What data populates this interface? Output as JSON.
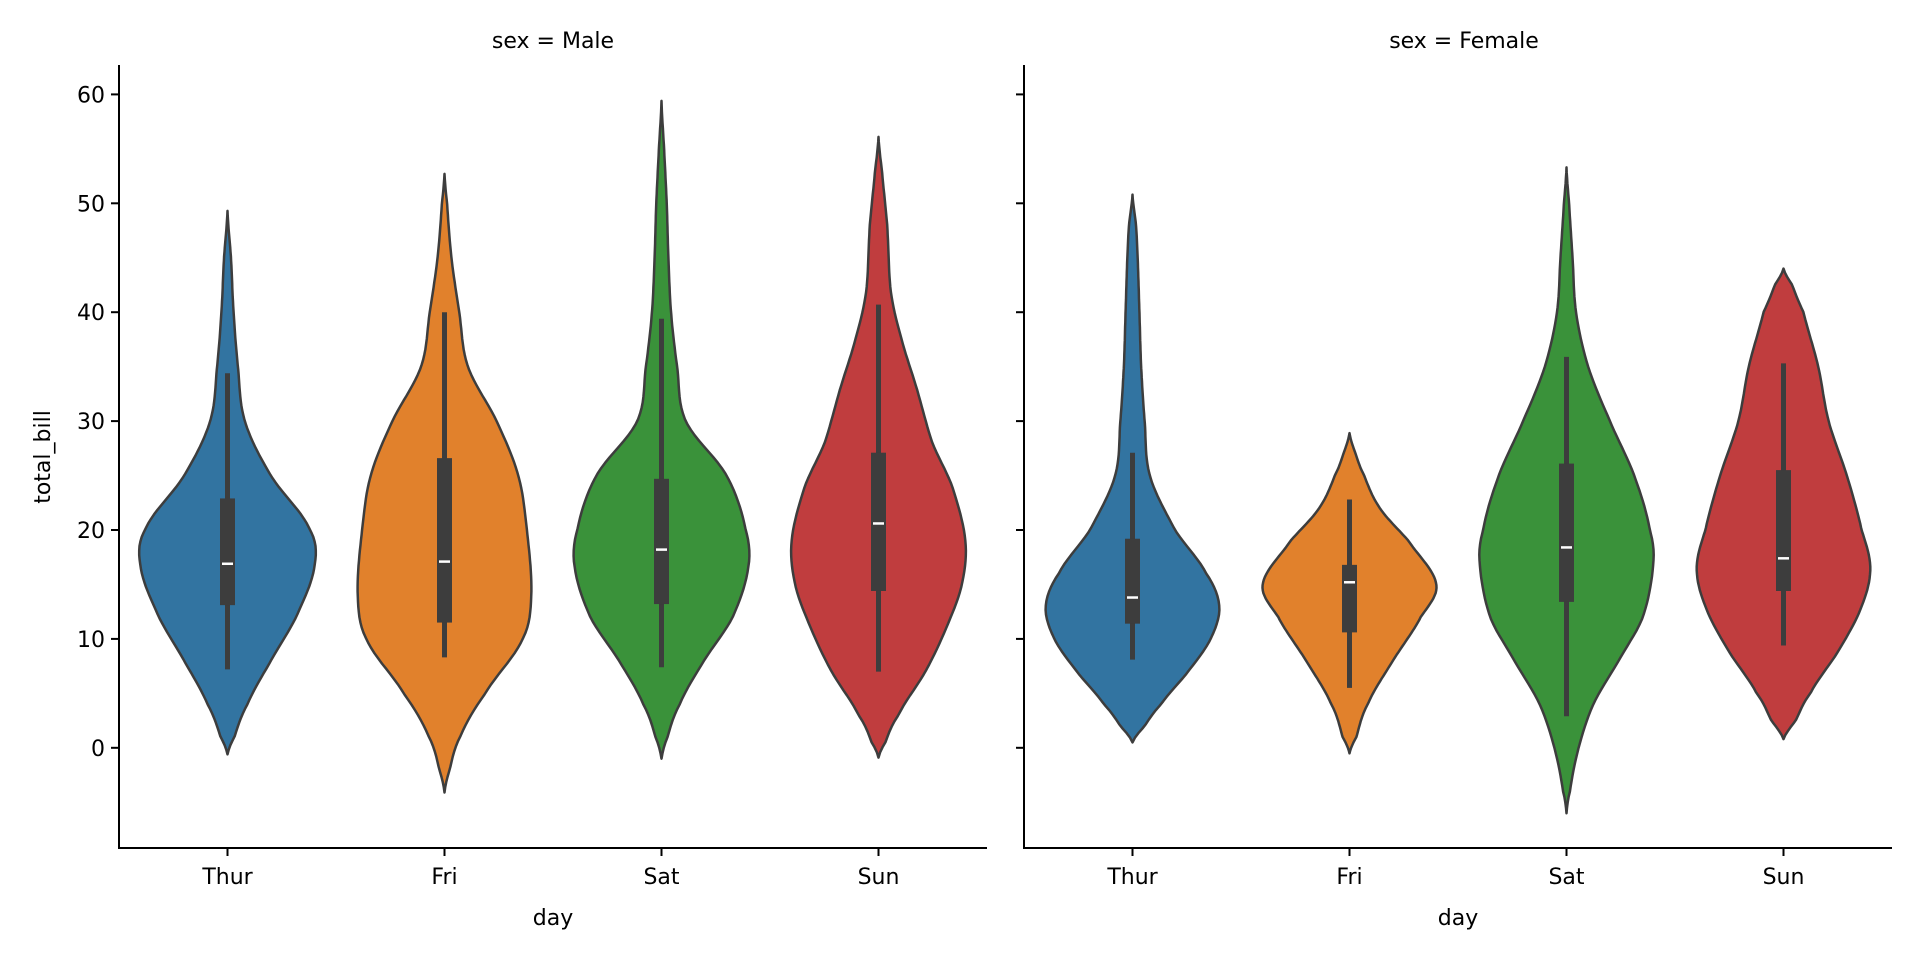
{
  "chart_data": {
    "type": "violin",
    "ylabel": "total_bill",
    "xlabel": "day",
    "ylim": [
      -9.2,
      62.7
    ],
    "yticks": [
      "0",
      "10",
      "20",
      "30",
      "40",
      "50",
      "60"
    ],
    "ytick_values": [
      0,
      10,
      20,
      30,
      40,
      50,
      60
    ],
    "categories": [
      "Thur",
      "Fri",
      "Sat",
      "Sun"
    ],
    "colors": [
      "#3274a1",
      "#e1812c",
      "#3a923a",
      "#c03d3e"
    ],
    "outline_color": "#3d3d3d",
    "grid": false,
    "panels": [
      {
        "title": "sex = Male",
        "violins": [
          {
            "category": "Thur",
            "min": -0.6,
            "max": 49.3,
            "whisker_low": 7.2,
            "q1": 13.1,
            "median": 16.9,
            "q3": 22.9,
            "whisker_high": 34.4,
            "profile": [
              [
                -0.6,
                0
              ],
              [
                1,
                0.08
              ],
              [
                4,
                0.23
              ],
              [
                8,
                0.5
              ],
              [
                12,
                0.79
              ],
              [
                16.6,
                1.0
              ],
              [
                20,
                0.95
              ],
              [
                25,
                0.5
              ],
              [
                30,
                0.2
              ],
              [
                35,
                0.12
              ],
              [
                40,
                0.07
              ],
              [
                45,
                0.04
              ],
              [
                49.3,
                0
              ]
            ]
          },
          {
            "category": "Fri",
            "min": -4.1,
            "max": 52.7,
            "whisker_low": 8.3,
            "q1": 11.5,
            "median": 17.1,
            "q3": 26.6,
            "whisker_high": 40.0,
            "profile": [
              [
                -4.1,
                0
              ],
              [
                -2,
                0.06
              ],
              [
                1,
                0.18
              ],
              [
                5,
                0.47
              ],
              [
                10,
                0.9
              ],
              [
                14,
                1.0
              ],
              [
                20,
                0.95
              ],
              [
                25,
                0.85
              ],
              [
                30,
                0.6
              ],
              [
                35,
                0.27
              ],
              [
                40,
                0.17
              ],
              [
                45,
                0.08
              ],
              [
                50,
                0.03
              ],
              [
                52.7,
                0
              ]
            ]
          },
          {
            "category": "Sat",
            "min": -1.0,
            "max": 59.4,
            "whisker_low": 7.4,
            "q1": 13.2,
            "median": 18.2,
            "q3": 24.7,
            "whisker_high": 39.4,
            "profile": [
              [
                -1,
                0
              ],
              [
                1,
                0.07
              ],
              [
                4,
                0.21
              ],
              [
                8,
                0.49
              ],
              [
                12,
                0.82
              ],
              [
                16.6,
                1.0
              ],
              [
                20,
                0.97
              ],
              [
                25,
                0.75
              ],
              [
                30,
                0.28
              ],
              [
                35,
                0.18
              ],
              [
                40,
                0.11
              ],
              [
                45,
                0.08
              ],
              [
                50,
                0.06
              ],
              [
                55,
                0.03
              ],
              [
                59.4,
                0
              ]
            ]
          },
          {
            "category": "Sun",
            "min": -0.9,
            "max": 56.1,
            "whisker_low": 7.0,
            "q1": 14.4,
            "median": 20.6,
            "q3": 27.1,
            "whisker_high": 40.7,
            "profile": [
              [
                -0.9,
                0
              ],
              [
                0.5,
                0.08
              ],
              [
                3,
                0.23
              ],
              [
                7,
                0.54
              ],
              [
                11,
                0.78
              ],
              [
                15,
                0.96
              ],
              [
                19,
                1.0
              ],
              [
                24,
                0.85
              ],
              [
                28,
                0.62
              ],
              [
                33,
                0.44
              ],
              [
                38,
                0.25
              ],
              [
                42,
                0.14
              ],
              [
                48,
                0.1
              ],
              [
                53,
                0.04
              ],
              [
                56.1,
                0
              ]
            ]
          }
        ]
      },
      {
        "title": "sex = Female",
        "violins": [
          {
            "category": "Thur",
            "min": 0.5,
            "max": 50.8,
            "whisker_low": 8.1,
            "q1": 11.4,
            "median": 13.8,
            "q3": 19.2,
            "whisker_high": 27.1,
            "profile": [
              [
                0.5,
                0
              ],
              [
                2,
                0.14
              ],
              [
                4,
                0.33
              ],
              [
                7,
                0.64
              ],
              [
                10,
                0.9
              ],
              [
                13,
                1.0
              ],
              [
                16,
                0.85
              ],
              [
                20,
                0.49
              ],
              [
                25,
                0.2
              ],
              [
                30,
                0.14
              ],
              [
                35,
                0.1
              ],
              [
                40,
                0.08
              ],
              [
                45,
                0.06
              ],
              [
                48,
                0.04
              ],
              [
                50.8,
                0
              ]
            ]
          },
          {
            "category": "Fri",
            "min": -0.5,
            "max": 28.9,
            "whisker_low": 5.5,
            "q1": 10.6,
            "median": 15.2,
            "q3": 16.8,
            "whisker_high": 22.8,
            "profile": [
              [
                -0.5,
                0
              ],
              [
                1,
                0.08
              ],
              [
                4,
                0.21
              ],
              [
                8,
                0.5
              ],
              [
                12,
                0.82
              ],
              [
                15,
                1.0
              ],
              [
                19,
                0.68
              ],
              [
                22,
                0.35
              ],
              [
                25,
                0.17
              ],
              [
                27,
                0.07
              ],
              [
                28.9,
                0
              ]
            ]
          },
          {
            "category": "Sat",
            "min": -6.0,
            "max": 53.3,
            "whisker_low": 2.9,
            "q1": 13.4,
            "median": 18.4,
            "q3": 26.1,
            "whisker_high": 35.9,
            "profile": [
              [
                -6,
                0
              ],
              [
                -4,
                0.04
              ],
              [
                0,
                0.14
              ],
              [
                4,
                0.31
              ],
              [
                8,
                0.6
              ],
              [
                12,
                0.88
              ],
              [
                17,
                1.0
              ],
              [
                20,
                0.96
              ],
              [
                25,
                0.78
              ],
              [
                30,
                0.5
              ],
              [
                35,
                0.25
              ],
              [
                40,
                0.11
              ],
              [
                45,
                0.07
              ],
              [
                50,
                0.03
              ],
              [
                53.3,
                0
              ]
            ]
          },
          {
            "category": "Sun",
            "min": 0.8,
            "max": 44.0,
            "whisker_low": 9.4,
            "q1": 14.4,
            "median": 17.4,
            "q3": 25.5,
            "whisker_high": 35.3,
            "profile": [
              [
                0.8,
                0
              ],
              [
                2.5,
                0.14
              ],
              [
                5,
                0.31
              ],
              [
                9,
                0.64
              ],
              [
                13,
                0.9
              ],
              [
                16.5,
                1.0
              ],
              [
                20,
                0.9
              ],
              [
                25,
                0.73
              ],
              [
                30,
                0.52
              ],
              [
                35,
                0.4
              ],
              [
                40,
                0.23
              ],
              [
                42.5,
                0.1
              ],
              [
                44,
                0
              ]
            ]
          }
        ]
      }
    ]
  }
}
